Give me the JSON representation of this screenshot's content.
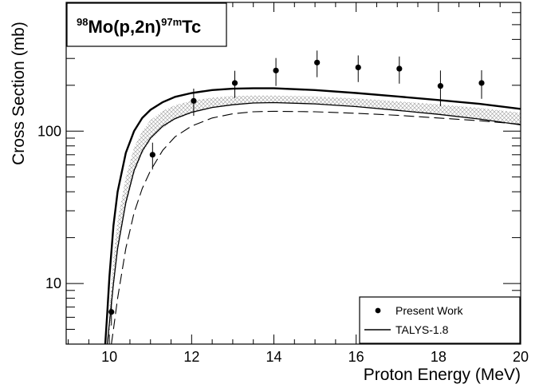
{
  "chart_data": {
    "type": "scatter",
    "title": {
      "sup1": "98",
      "part1": "Mo(p,2n)",
      "sup2": "97m",
      "part2": "Tc"
    },
    "xlabel": "Proton Energy (MeV)",
    "ylabel": "Cross Section (mb)",
    "xlim": [
      8.95,
      20
    ],
    "ylim": [
      4.0,
      700
    ],
    "yscale": "log",
    "x_ticks": [
      {
        "value": 10,
        "label": "10"
      },
      {
        "value": 12,
        "label": "12"
      },
      {
        "value": 14,
        "label": "14"
      },
      {
        "value": 16,
        "label": "16"
      },
      {
        "value": 18,
        "label": "18"
      },
      {
        "value": 20,
        "label": "20"
      }
    ],
    "y_ticks": [
      {
        "value": 10,
        "label": "10"
      },
      {
        "value": 100,
        "label": "100"
      }
    ],
    "legend": {
      "position": "bottom-right",
      "entries": [
        {
          "label": "Present Work",
          "marker": "point"
        },
        {
          "label": "TALYS-1.8",
          "marker": "line"
        }
      ]
    },
    "series": [
      {
        "name": "Present Work",
        "kind": "points_with_errors",
        "points": [
          {
            "x": 10.05,
            "y": 6.5,
            "yerr": 1.2
          },
          {
            "x": 11.05,
            "y": 70,
            "yerr": 14
          },
          {
            "x": 12.05,
            "y": 158,
            "yerr": 32
          },
          {
            "x": 13.05,
            "y": 207,
            "yerr": 42
          },
          {
            "x": 14.05,
            "y": 250,
            "yerr": 52
          },
          {
            "x": 15.05,
            "y": 282,
            "yerr": 56
          },
          {
            "x": 16.05,
            "y": 262,
            "yerr": 52
          },
          {
            "x": 17.05,
            "y": 257,
            "yerr": 52
          },
          {
            "x": 18.05,
            "y": 198,
            "yerr": 52
          },
          {
            "x": 19.05,
            "y": 207,
            "yerr": 44
          }
        ]
      },
      {
        "name": "TALYS-1.8",
        "kind": "line",
        "style": "thin-solid",
        "x": [
          9.95,
          10.0,
          10.1,
          10.2,
          10.4,
          10.6,
          10.8,
          11.0,
          11.3,
          11.6,
          12.0,
          12.5,
          13.0,
          13.5,
          14.0,
          15.0,
          16.0,
          17.0,
          18.0,
          19.0,
          20.0
        ],
        "y": [
          4.0,
          5.5,
          10,
          17,
          34,
          55,
          74,
          90,
          108,
          121,
          133,
          143,
          149,
          153,
          154,
          151,
          145,
          137,
          129,
          120,
          110
        ]
      },
      {
        "kind": "line",
        "style": "thick-solid",
        "x": [
          9.9,
          9.95,
          10.0,
          10.1,
          10.2,
          10.4,
          10.6,
          10.8,
          11.0,
          11.3,
          11.6,
          12.0,
          12.5,
          13.0,
          13.5,
          14.0,
          15.0,
          16.0,
          17.0,
          18.0,
          19.0,
          20.0
        ],
        "y": [
          4.0,
          6.5,
          11,
          24,
          40,
          72,
          100,
          122,
          138,
          155,
          168,
          178,
          186,
          190,
          191,
          191,
          186,
          178,
          169,
          160,
          151,
          140
        ]
      },
      {
        "kind": "line",
        "style": "dashed",
        "x": [
          10.05,
          10.1,
          10.2,
          10.4,
          10.6,
          10.8,
          11.0,
          11.3,
          11.6,
          12.0,
          12.5,
          13.0,
          13.5,
          14.0,
          15.0,
          16.0,
          17.0,
          18.0,
          19.0,
          20.0
        ],
        "y": [
          4.0,
          5.0,
          8,
          17,
          29,
          42,
          55,
          75,
          92,
          108,
          122,
          130,
          134,
          135,
          134,
          131,
          127,
          122,
          117,
          111
        ]
      },
      {
        "kind": "band",
        "style": "hatched",
        "x": [
          9.98,
          10.0,
          10.1,
          10.2,
          10.4,
          10.6,
          10.8,
          11.0,
          11.3,
          11.6,
          12.0,
          12.5,
          13.0,
          13.5,
          14.0,
          15.0,
          16.0,
          17.0,
          18.0,
          19.0,
          20.0
        ],
        "lower": [
          4.0,
          4.5,
          9,
          16,
          32,
          52,
          71,
          87,
          105,
          119,
          131,
          142,
          148,
          152,
          153,
          150,
          144,
          136,
          128,
          119,
          110
        ],
        "upper": [
          4.0,
          6.8,
          15,
          26,
          50,
          78,
          100,
          118,
          136,
          148,
          158,
          166,
          170,
          171,
          171,
          169,
          164,
          157,
          150,
          142,
          132
        ]
      }
    ]
  }
}
